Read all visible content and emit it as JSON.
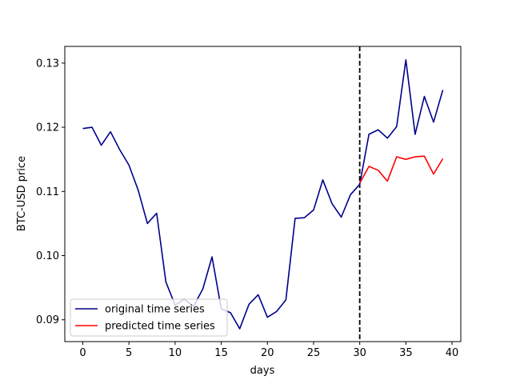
{
  "chart_data": {
    "type": "line",
    "title": "",
    "xlabel": "days",
    "ylabel": "BTC-USD price",
    "xlim": [
      -1.95,
      40.95
    ],
    "ylim": [
      0.0866,
      0.1326
    ],
    "xticks": [
      0,
      5,
      10,
      15,
      20,
      25,
      30,
      35,
      40
    ],
    "yticks": [
      0.09,
      0.1,
      0.11,
      0.12,
      0.13
    ],
    "ytick_labels": [
      "0.09",
      "0.10",
      "0.11",
      "0.12",
      "0.13"
    ],
    "grid": false,
    "legend_position": "lower-left",
    "vline": {
      "x": 30,
      "style": "dashed",
      "color": "#000000"
    },
    "series": [
      {
        "name": "original time series",
        "color": "#00008b",
        "x": [
          0,
          1,
          2,
          3,
          4,
          5,
          6,
          7,
          8,
          9,
          10,
          11,
          12,
          13,
          14,
          15,
          16,
          17,
          18,
          19,
          20,
          21,
          22,
          23,
          24,
          25,
          26,
          27,
          28,
          29,
          30,
          31,
          32,
          33,
          34,
          35,
          36,
          37,
          38,
          39
        ],
        "values": [
          0.1198,
          0.12,
          0.1172,
          0.1193,
          0.1165,
          0.1141,
          0.1102,
          0.105,
          0.1066,
          0.0959,
          0.0923,
          0.0932,
          0.0921,
          0.0948,
          0.0998,
          0.0917,
          0.0911,
          0.0886,
          0.0924,
          0.0939,
          0.0904,
          0.0913,
          0.0931,
          0.1058,
          0.1059,
          0.1071,
          0.1118,
          0.1081,
          0.106,
          0.1095,
          0.1111,
          0.1189,
          0.1196,
          0.1183,
          0.1201,
          0.1305,
          0.1189,
          0.1248,
          0.1208,
          0.1258
        ]
      },
      {
        "name": "predicted time series",
        "color": "#ff0000",
        "x": [
          30,
          31,
          32,
          33,
          34,
          35,
          36,
          37,
          38,
          39
        ],
        "values": [
          0.1113,
          0.1139,
          0.1133,
          0.1116,
          0.1154,
          0.115,
          0.1154,
          0.1155,
          0.1127,
          0.1151
        ]
      }
    ]
  }
}
